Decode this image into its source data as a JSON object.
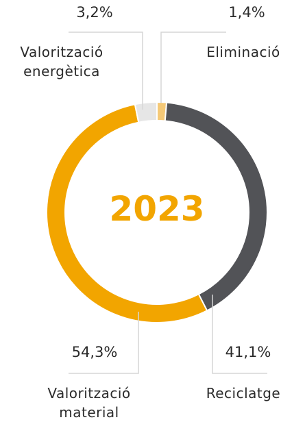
{
  "chart_data": {
    "type": "donut",
    "center_text": "2023",
    "categories": [
      "Eliminació",
      "Reciclatge",
      "Valorització material",
      "Valorització energètica"
    ],
    "values": [
      1.4,
      41.1,
      54.3,
      3.2
    ],
    "value_labels": [
      "1,4%",
      "41,1%",
      "54,3%",
      "3,2%"
    ],
    "colors": [
      "#f5c977",
      "#525357",
      "#f2a500",
      "#e6e6e6"
    ]
  }
}
